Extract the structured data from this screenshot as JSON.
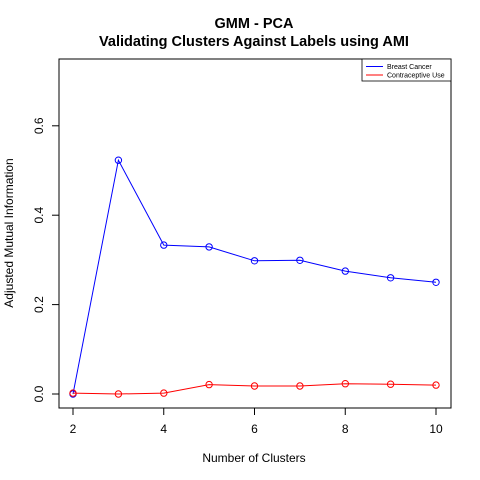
{
  "chart_data": {
    "type": "line",
    "title": "GMM - PCA",
    "subtitle": "Validating Clusters Against Labels using AMI",
    "xlabel": "Number of Clusters",
    "ylabel": "Adjusted Mutual Information",
    "x": [
      2,
      3,
      4,
      5,
      6,
      7,
      8,
      9,
      10
    ],
    "xlim": [
      2,
      10
    ],
    "ylim": [
      0,
      0.75
    ],
    "x_ticks": [
      "2",
      "4",
      "6",
      "8",
      "10"
    ],
    "y_ticks": [
      "0.0",
      "0.2",
      "0.4",
      "0.6"
    ],
    "grid": false,
    "legend_position": "top-right",
    "series": [
      {
        "name": "Breast Cancer",
        "color": "#0000ff",
        "values": [
          0.0,
          0.523,
          0.333,
          0.329,
          0.298,
          0.299,
          0.275,
          0.26,
          0.25
        ]
      },
      {
        "name": "Contraceptive Use",
        "color": "#ff0000",
        "values": [
          0.002,
          0.0,
          0.002,
          0.021,
          0.018,
          0.018,
          0.023,
          0.022,
          0.02
        ]
      }
    ]
  }
}
